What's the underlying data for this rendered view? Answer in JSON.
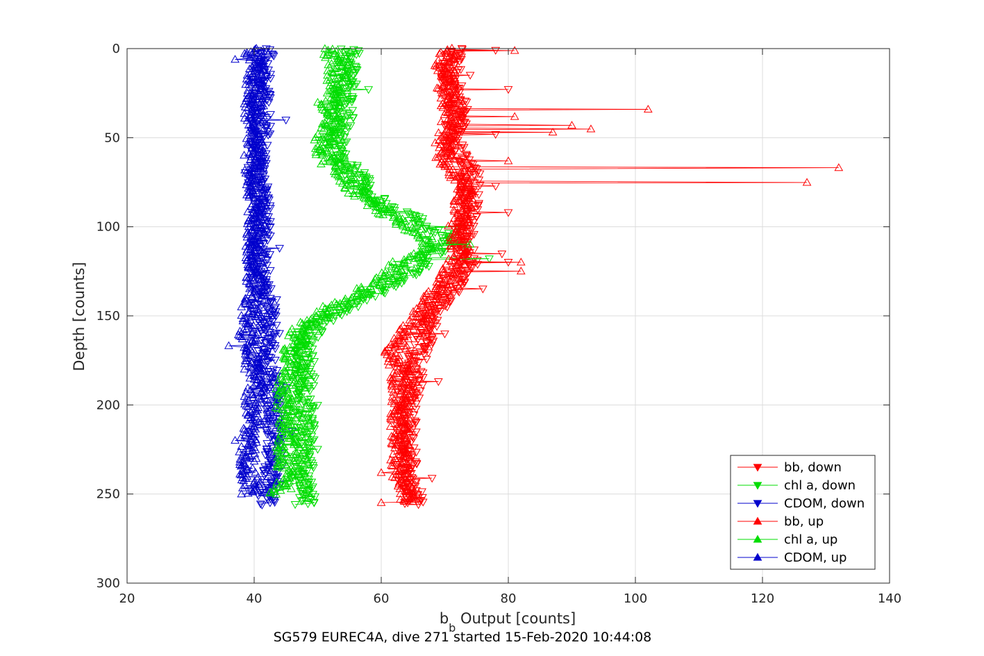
{
  "chart_data": {
    "type": "scatter",
    "xlabel": "b",
    "xlabel_sub": "b",
    "xlabel_rest": " Output [counts]",
    "ylabel": "Depth [counts]",
    "caption": "SG579 EUREC4A, dive 271 started 15-Feb-2020 10:44:08",
    "xlim": [
      20,
      140
    ],
    "ylim": [
      0,
      300
    ],
    "y_reversed": true,
    "grid": true,
    "legend_position": "bottom-right",
    "x_ticks": [
      "20",
      "40",
      "60",
      "80",
      "100",
      "120",
      "140"
    ],
    "y_ticks": [
      "0",
      "50",
      "100",
      "150",
      "200",
      "250",
      "300"
    ],
    "series": [
      {
        "name": "bb, down",
        "color": "#ff0000",
        "marker": "triangle-down",
        "profile": [
          [
            0,
            72
          ],
          [
            10,
            71
          ],
          [
            20,
            71
          ],
          [
            30,
            72
          ],
          [
            40,
            72
          ],
          [
            50,
            71
          ],
          [
            60,
            72
          ],
          [
            65,
            73
          ],
          [
            70,
            74
          ],
          [
            80,
            74
          ],
          [
            90,
            74
          ],
          [
            100,
            73
          ],
          [
            105,
            73
          ],
          [
            110,
            73
          ],
          [
            115,
            74
          ],
          [
            120,
            74
          ],
          [
            130,
            72
          ],
          [
            140,
            70
          ],
          [
            150,
            68
          ],
          [
            160,
            67
          ],
          [
            170,
            66
          ],
          [
            180,
            65
          ],
          [
            190,
            65
          ],
          [
            200,
            64
          ],
          [
            210,
            64
          ],
          [
            220,
            64
          ],
          [
            230,
            64
          ],
          [
            240,
            64
          ],
          [
            250,
            65
          ],
          [
            256,
            65
          ]
        ],
        "spikes": [
          [
            1,
            78
          ],
          [
            15,
            74
          ],
          [
            23,
            80
          ],
          [
            48,
            78
          ],
          [
            77,
            78
          ],
          [
            92,
            80
          ],
          [
            115,
            79
          ],
          [
            120,
            80
          ],
          [
            135,
            76
          ],
          [
            160,
            70
          ],
          [
            187,
            69
          ],
          [
            196,
            66
          ],
          [
            241,
            68
          ],
          [
            254,
            66
          ]
        ]
      },
      {
        "name": "chl a, down",
        "color": "#00dd00",
        "marker": "triangle-down",
        "profile": [
          [
            0,
            55
          ],
          [
            10,
            55
          ],
          [
            20,
            55
          ],
          [
            25,
            54
          ],
          [
            30,
            54
          ],
          [
            40,
            54
          ],
          [
            50,
            53
          ],
          [
            60,
            53
          ],
          [
            66,
            55
          ],
          [
            70,
            56
          ],
          [
            80,
            58
          ],
          [
            88,
            60
          ],
          [
            95,
            65
          ],
          [
            100,
            68
          ],
          [
            105,
            71
          ],
          [
            110,
            70
          ],
          [
            115,
            68
          ],
          [
            120,
            67
          ],
          [
            130,
            63
          ],
          [
            140,
            58
          ],
          [
            145,
            55
          ],
          [
            150,
            52
          ],
          [
            155,
            50
          ],
          [
            160,
            49
          ],
          [
            170,
            48
          ],
          [
            180,
            48
          ],
          [
            190,
            48
          ],
          [
            200,
            48
          ],
          [
            210,
            48
          ],
          [
            220,
            48
          ],
          [
            230,
            48
          ],
          [
            240,
            48
          ],
          [
            250,
            48
          ],
          [
            256,
            48
          ]
        ],
        "spikes": [
          [
            23,
            58
          ],
          [
            100,
            72
          ],
          [
            110,
            73
          ],
          [
            118,
            77
          ],
          [
            200,
            50
          ],
          [
            225,
            50
          ],
          [
            253,
            49
          ]
        ]
      },
      {
        "name": "CDOM, down",
        "color": "#0000cc",
        "marker": "triangle-down",
        "profile": [
          [
            0,
            42
          ],
          [
            10,
            41
          ],
          [
            20,
            41
          ],
          [
            30,
            41
          ],
          [
            40,
            41
          ],
          [
            50,
            41
          ],
          [
            60,
            41
          ],
          [
            70,
            40
          ],
          [
            80,
            41
          ],
          [
            90,
            41
          ],
          [
            100,
            41
          ],
          [
            110,
            41
          ],
          [
            120,
            41
          ],
          [
            130,
            41
          ],
          [
            140,
            42
          ],
          [
            150,
            42
          ],
          [
            160,
            42
          ],
          [
            170,
            42
          ],
          [
            180,
            42
          ],
          [
            190,
            43
          ],
          [
            200,
            43
          ],
          [
            210,
            43
          ],
          [
            220,
            43
          ],
          [
            230,
            43
          ],
          [
            240,
            43
          ],
          [
            250,
            42
          ],
          [
            256,
            42
          ]
        ],
        "spikes": [
          [
            40,
            45
          ],
          [
            112,
            44
          ],
          [
            148,
            43
          ],
          [
            160,
            44
          ],
          [
            190,
            45
          ],
          [
            215,
            46
          ]
        ]
      },
      {
        "name": "bb, up",
        "color": "#ff0000",
        "marker": "triangle-up",
        "profile": [
          [
            0,
            70
          ],
          [
            10,
            70
          ],
          [
            20,
            70
          ],
          [
            30,
            71
          ],
          [
            40,
            71
          ],
          [
            50,
            70
          ],
          [
            60,
            70
          ],
          [
            65,
            70
          ],
          [
            70,
            72
          ],
          [
            80,
            73
          ],
          [
            90,
            73
          ],
          [
            100,
            72
          ],
          [
            110,
            72
          ],
          [
            120,
            72
          ],
          [
            130,
            70
          ],
          [
            140,
            68
          ],
          [
            150,
            66
          ],
          [
            160,
            64
          ],
          [
            170,
            62
          ],
          [
            180,
            63
          ],
          [
            190,
            63
          ],
          [
            200,
            63
          ],
          [
            210,
            63
          ],
          [
            220,
            63
          ],
          [
            230,
            63
          ],
          [
            240,
            63
          ],
          [
            250,
            64
          ],
          [
            255,
            64
          ]
        ],
        "spikes": [
          [
            1,
            81
          ],
          [
            34,
            102
          ],
          [
            38,
            81
          ],
          [
            43,
            90
          ],
          [
            45,
            93
          ],
          [
            47,
            87
          ],
          [
            63,
            80
          ],
          [
            67,
            132
          ],
          [
            75,
            127
          ],
          [
            120,
            82
          ],
          [
            125,
            82
          ],
          [
            160,
            68
          ],
          [
            238,
            60
          ],
          [
            255,
            60
          ]
        ]
      },
      {
        "name": "chl a, up",
        "color": "#00dd00",
        "marker": "triangle-up",
        "profile": [
          [
            0,
            52
          ],
          [
            10,
            53
          ],
          [
            20,
            53
          ],
          [
            30,
            52
          ],
          [
            40,
            52
          ],
          [
            50,
            51
          ],
          [
            60,
            51
          ],
          [
            65,
            52
          ],
          [
            70,
            54
          ],
          [
            80,
            56
          ],
          [
            90,
            60
          ],
          [
            100,
            64
          ],
          [
            105,
            67
          ],
          [
            110,
            68
          ],
          [
            115,
            66
          ],
          [
            120,
            63
          ],
          [
            130,
            60
          ],
          [
            140,
            55
          ],
          [
            145,
            52
          ],
          [
            150,
            50
          ],
          [
            155,
            48
          ],
          [
            160,
            47
          ],
          [
            170,
            46
          ],
          [
            180,
            46
          ],
          [
            190,
            45
          ],
          [
            200,
            45
          ],
          [
            210,
            45
          ],
          [
            220,
            45
          ],
          [
            230,
            45
          ],
          [
            240,
            45
          ],
          [
            250,
            44
          ]
        ],
        "spikes": [
          [
            30,
            50
          ],
          [
            110,
            74
          ],
          [
            188,
            47
          ],
          [
            205,
            47
          ],
          [
            240,
            46
          ]
        ]
      },
      {
        "name": "CDOM, up",
        "color": "#0000cc",
        "marker": "triangle-up",
        "profile": [
          [
            0,
            40
          ],
          [
            10,
            40
          ],
          [
            20,
            40
          ],
          [
            30,
            40
          ],
          [
            40,
            40
          ],
          [
            50,
            40
          ],
          [
            60,
            40
          ],
          [
            70,
            40
          ],
          [
            80,
            40
          ],
          [
            90,
            40
          ],
          [
            100,
            40
          ],
          [
            110,
            40
          ],
          [
            120,
            40
          ],
          [
            130,
            40
          ],
          [
            140,
            40
          ],
          [
            150,
            40
          ],
          [
            160,
            39
          ],
          [
            170,
            40
          ],
          [
            180,
            40
          ],
          [
            190,
            40
          ],
          [
            200,
            40
          ],
          [
            210,
            40
          ],
          [
            220,
            39
          ],
          [
            230,
            39
          ],
          [
            240,
            39
          ],
          [
            250,
            40
          ]
        ],
        "spikes": [
          [
            6,
            37
          ],
          [
            145,
            38
          ],
          [
            150,
            38
          ],
          [
            167,
            36
          ],
          [
            220,
            37
          ],
          [
            250,
            38
          ]
        ]
      }
    ]
  }
}
